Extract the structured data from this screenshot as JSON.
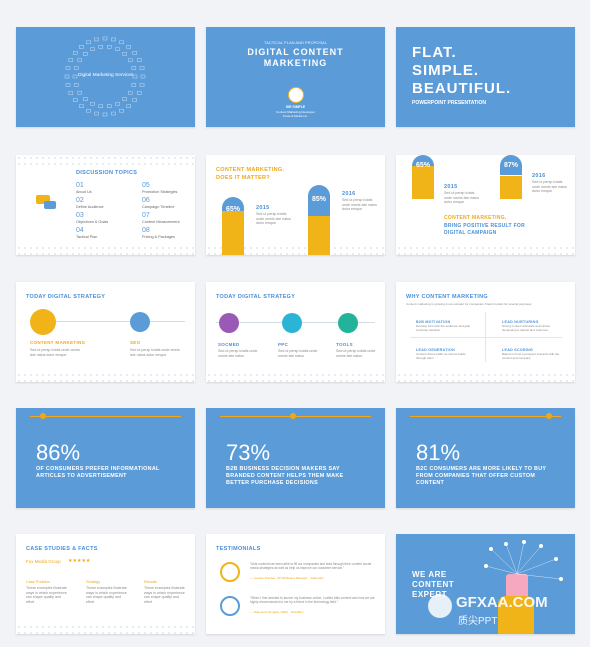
{
  "slide1": {
    "text": "Digital Marketing Services"
  },
  "slide2": {
    "pre": "TACTICAL PLAN AND PROPOSAL",
    "title": "DIGITAL CONTENT MARKETING",
    "name": "SIR SIMPLE",
    "role": "Content Marketing Developer",
    "org": "Present Media Inc."
  },
  "slide3": {
    "line1": "FLAT.",
    "line2": "SIMPLE.",
    "line3": "BEAUTIFUL.",
    "sub": "POWERPOINT PRESENTATION"
  },
  "slide4": {
    "title": "DISCUSSION TOPICS",
    "items": [
      {
        "num": "01",
        "label": "About Us"
      },
      {
        "num": "05",
        "label": "Promotion Strategies"
      },
      {
        "num": "02",
        "label": "Define Audience"
      },
      {
        "num": "06",
        "label": "Campaign Timeline"
      },
      {
        "num": "03",
        "label": "Objectives & Goals"
      },
      {
        "num": "07",
        "label": "Content Measurement"
      },
      {
        "num": "04",
        "label": "Tactical Plan"
      },
      {
        "num": "08",
        "label": "Pricing & Packages"
      }
    ]
  },
  "slide5": {
    "title1": "CONTENT MARKETING.",
    "title2": "DOES IT MATTER?",
    "bars": [
      {
        "pct": "65%",
        "value": 65,
        "year": "2015",
        "desc": "Sed ut persp iciatis unde omnis iste natus dolor emque"
      },
      {
        "pct": "85%",
        "value": 85,
        "year": "2016",
        "desc": "Sed ut persp iciatis unde omnis iste natus dolor emque"
      }
    ]
  },
  "slide6": {
    "bars": [
      {
        "pct": "65%",
        "value": 65,
        "year": "2015",
        "desc": "Sed ut persp iciatis unde omnis iste natus dolor emque"
      },
      {
        "pct": "87%",
        "value": 87,
        "year": "2016",
        "desc": "Sed ut persp iciatis unde omnis iste natus dolor emque"
      }
    ],
    "title1": "CONTENT MARKETING.",
    "title2": "BRING POSITIVE RESULT FOR",
    "title3": "DIGITAL CAMPAIGN"
  },
  "slide7": {
    "title": "TODAY DIGITAL STRATEGY",
    "items": [
      {
        "label": "CONTENT MARKETING",
        "desc": "Sed ut persp iciatis unde omnis iste natus dolor emque"
      },
      {
        "label": "SEO",
        "desc": "Sed ut persp iciatis unde omnis iste natus dolor emque"
      }
    ]
  },
  "slide8": {
    "title": "TODAY DIGITAL STRATEGY",
    "items": [
      {
        "label": "SOCMED",
        "desc": "Sed ut persp iciatis unde omnis iste natus"
      },
      {
        "label": "PPC",
        "desc": "Sed ut persp iciatis unde omnis iste natus"
      },
      {
        "label": "TOOLS",
        "desc": "Sed ut persp iciatis unde omnis iste natus"
      }
    ]
  },
  "slide9": {
    "title": "WHY CONTENT MARKETING",
    "sub": "Content marketing is growing more relevant for companies' brand models for several purposes",
    "items": [
      {
        "label": "B2B MOTIVATION",
        "desc": "Develop trust with the audience and gain customer decision"
      },
      {
        "label": "LEAD NURTURING",
        "desc": "Strong content articulate and stories developing a natural and customer"
      },
      {
        "label": "LEAD GENERATION",
        "desc": "Content drives traffic as well as leads through them"
      },
      {
        "label": "LEAD SCORING",
        "desc": "Based on how a prospect interacts with the content and company"
      }
    ]
  },
  "slide10": {
    "stat": "86%",
    "text": "OF CONSUMERS PREFER INFORMATIONAL ARTICLES TO ADVERTISEMENT"
  },
  "slide11": {
    "stat": "73%",
    "text": "B2B BUSINESS DECISION MAKERS SAY BRANDED CONTENT HELPS THEM MAKE BETTER PURCHASE DECISIONS"
  },
  "slide12": {
    "stat": "81%",
    "text": "B2C CONSUMERS ARE MORE LIKELY TO BUY FROM COMPANIES THAT OFFER CUSTOM CONTENT"
  },
  "slide13": {
    "title": "CASE STUDIES & FACTS",
    "client": "Fox Media Group",
    "stars": "★★★★★",
    "cols": [
      {
        "label": "Case Problem",
        "desc": "These examples illustrate ways in which experience can shape quality and effort"
      },
      {
        "label": "Strategy",
        "desc": "These examples illustrate ways in which experience can shape quality and effort"
      },
      {
        "label": "Results",
        "desc": "These examples illustrate ways in which experience can shape quality and effort"
      }
    ]
  },
  "slide14": {
    "title": "TESTIMONIALS",
    "quotes": [
      {
        "text": "\"Aids content has been able to fill our companies and lead through their content social media strategies as well as help us improve our customer service.\"",
        "author": "— Leanne Dundee, VP Marketing Manager · Vidal-Sam"
      },
      {
        "text": "\"When I first decided to launch my business online, I called Aids content and now we are highly recommended to me by a friend in the technology field.\"",
        "author": "— Raimonds Sergelis, IMEC · FideaBox"
      }
    ]
  },
  "slide15": {
    "line1": "WE ARE",
    "line2": "CONTENT",
    "line3": "EXPERT"
  },
  "watermark": {
    "brand": "GFXAA.COM",
    "sub": "质尖PPT"
  },
  "colors": {
    "blue": "#5b9bd8",
    "orange": "#f0b418",
    "purple": "#9b59b6",
    "teal": "#22b39a"
  }
}
